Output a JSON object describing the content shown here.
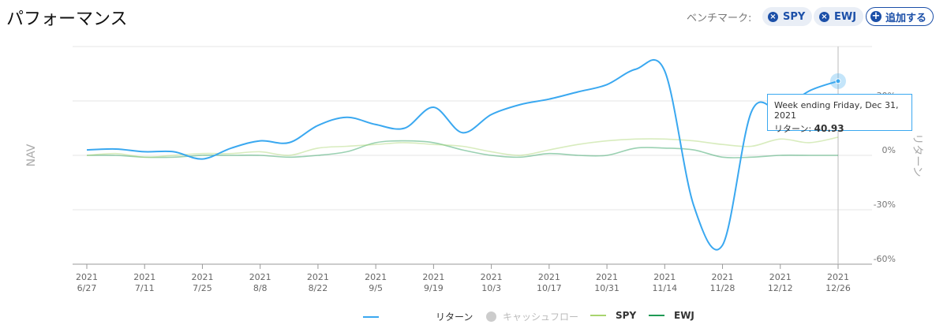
{
  "header": {
    "title": "パフォーマンス",
    "benchmark_label": "ベンチマーク:",
    "benchmarks": [
      "SPY",
      "EWJ"
    ],
    "add_button": "追加する"
  },
  "chart_data": {
    "type": "line",
    "y_label_left": "NAV",
    "y_label_right": "リターン",
    "categories": [
      "2021\n6/27",
      null,
      "2021\n7/11",
      null,
      "2021\n7/25",
      null,
      "2021\n8/8",
      null,
      "2021\n8/22",
      null,
      "2021\n9/5",
      null,
      "2021\n9/19",
      null,
      "2021\n10/3",
      null,
      "2021\n10/17",
      null,
      "2021\n10/31",
      null,
      "2021\n11/14",
      null,
      "2021\n11/28",
      null,
      "2021\n12/12",
      null,
      "2021\n12/26"
    ],
    "series": [
      {
        "name": "リターン",
        "color": "#3aa8f0",
        "values": [
          3,
          3.5,
          2,
          2,
          -2,
          4,
          8,
          7,
          16.5,
          21,
          17,
          15,
          26.5,
          12.5,
          22.5,
          28,
          31,
          35,
          39,
          47.5,
          46.5,
          -27.5,
          -49.5,
          24,
          25,
          35.5,
          40.93
        ]
      },
      {
        "name": "SPY",
        "color": "#a8d46f",
        "values": [
          0,
          1,
          -1,
          0,
          1,
          1,
          2,
          0,
          4,
          5,
          6,
          7,
          6,
          5,
          2,
          0,
          3,
          6,
          8,
          9,
          9,
          8,
          6,
          5,
          9,
          7,
          10
        ]
      },
      {
        "name": "EWJ",
        "color": "#1f9a55",
        "values": [
          0,
          0,
          -1,
          -1,
          0,
          0,
          0,
          -1,
          0,
          2,
          7,
          8,
          7,
          3,
          0,
          -1,
          1,
          0,
          0,
          4,
          4,
          3,
          -1,
          -1,
          0,
          0,
          0
        ]
      }
    ],
    "inactive_series": [
      {
        "name": "キャッシュフロー",
        "color": "#cccccc"
      }
    ],
    "ylim": [
      -60,
      60
    ],
    "yticks": [
      {
        "value": -60,
        "label": "-60%"
      },
      {
        "value": -30,
        "label": "-30%"
      },
      {
        "value": 0,
        "label": "0%"
      },
      {
        "value": 30,
        "label": "30%"
      }
    ],
    "grid": true,
    "tooltip": {
      "title": "Week ending Friday, Dec 31, 2021",
      "label": "リターン:",
      "index": 26
    }
  }
}
